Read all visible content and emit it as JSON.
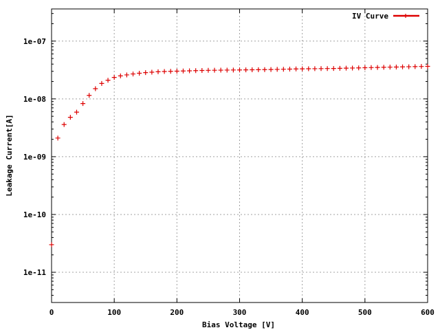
{
  "chart_data": {
    "type": "scatter",
    "xlabel": "Bias Voltage [V]",
    "ylabel": "Leakage Current[A]",
    "xlim": [
      0,
      600
    ],
    "ylim": [
      3e-12,
      3.6e-07
    ],
    "y_scale": "log",
    "grid": true,
    "legend_position": "top-right",
    "x_ticks": [
      0,
      100,
      200,
      300,
      400,
      500,
      600
    ],
    "x_tick_labels": [
      "0",
      "100",
      "200",
      "300",
      "400",
      "500",
      "600"
    ],
    "y_ticks": [
      1e-11,
      1e-10,
      1e-09,
      1e-08,
      1e-07
    ],
    "y_tick_labels": [
      "1e-11",
      "1e-10",
      "1e-09",
      "1e-08",
      "1e-07"
    ],
    "series": [
      {
        "name": "IV Curve",
        "color": "#dd0000",
        "marker": "plus",
        "x": [
          0,
          10,
          20,
          30,
          40,
          50,
          60,
          70,
          80,
          90,
          100,
          110,
          120,
          130,
          140,
          150,
          160,
          170,
          180,
          190,
          200,
          210,
          220,
          230,
          240,
          250,
          260,
          270,
          280,
          290,
          300,
          310,
          320,
          330,
          340,
          350,
          360,
          370,
          380,
          390,
          400,
          410,
          420,
          430,
          440,
          450,
          460,
          470,
          480,
          490,
          500,
          510,
          520,
          530,
          540,
          550,
          560,
          570,
          580,
          590,
          600
        ],
        "y": [
          3e-11,
          2.1e-09,
          3.6e-09,
          4.8e-09,
          5.9e-09,
          8.3e-09,
          1.15e-08,
          1.5e-08,
          1.85e-08,
          2.1e-08,
          2.35e-08,
          2.5e-08,
          2.6e-08,
          2.7e-08,
          2.78e-08,
          2.85e-08,
          2.9e-08,
          2.95e-08,
          2.98e-08,
          3e-08,
          3.02e-08,
          3.04e-08,
          3.06e-08,
          3.08e-08,
          3.1e-08,
          3.12e-08,
          3.13e-08,
          3.14e-08,
          3.15e-08,
          3.16e-08,
          3.17e-08,
          3.18e-08,
          3.19e-08,
          3.2e-08,
          3.21e-08,
          3.22e-08,
          3.24e-08,
          3.26e-08,
          3.28e-08,
          3.3e-08,
          3.31e-08,
          3.32e-08,
          3.33e-08,
          3.34e-08,
          3.35e-08,
          3.36e-08,
          3.38e-08,
          3.4e-08,
          3.42e-08,
          3.44e-08,
          3.46e-08,
          3.48e-08,
          3.5e-08,
          3.52e-08,
          3.54e-08,
          3.56e-08,
          3.58e-08,
          3.6e-08,
          3.62e-08,
          3.64e-08,
          3.66e-08
        ]
      }
    ]
  }
}
